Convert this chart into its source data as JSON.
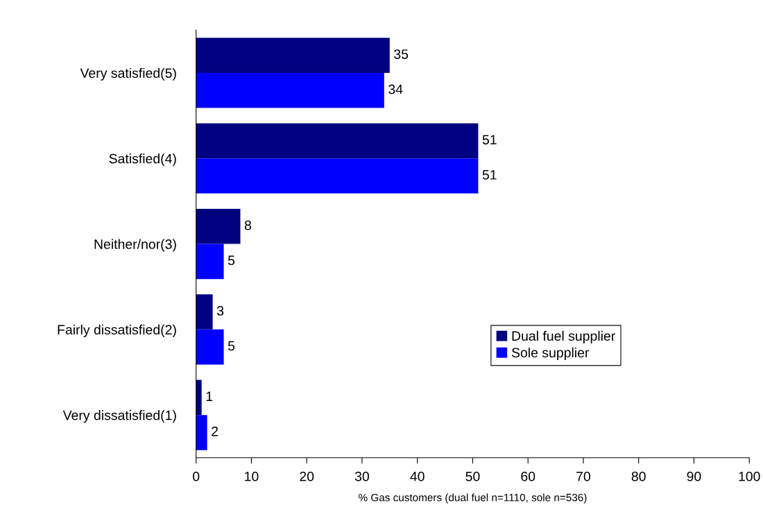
{
  "chart_data": {
    "type": "bar",
    "orientation": "horizontal",
    "categories": [
      "Very satisfied(5)",
      "Satisfied(4)",
      "Neither/nor(3)",
      "Fairly dissatisfied(2)",
      "Very dissatisfied(1)"
    ],
    "series": [
      {
        "name": "Dual fuel supplier",
        "color": "#000080",
        "values": [
          35,
          51,
          8,
          3,
          1
        ]
      },
      {
        "name": "Sole supplier",
        "color": "#0000ff",
        "values": [
          34,
          51,
          5,
          5,
          2
        ]
      }
    ],
    "xlabel": "% Gas customers (dual fuel n=1110, sole n=536)",
    "xlim": [
      0,
      100
    ],
    "xticks": [
      0,
      10,
      20,
      30,
      40,
      50,
      60,
      70,
      80,
      90,
      100
    ],
    "data_labels": true,
    "grid": false,
    "legend": "bottom right"
  }
}
